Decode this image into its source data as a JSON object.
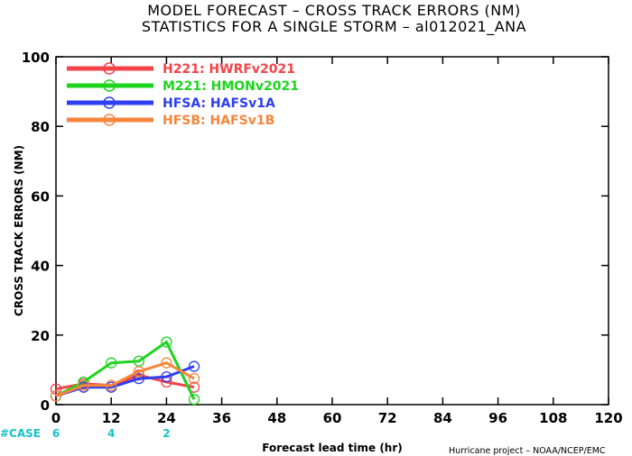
{
  "chart_data": {
    "type": "line",
    "title": "MODEL FORECAST – CROSS TRACK ERRORS (NM)",
    "subtitle": "STATISTICS FOR A SINGLE STORM – al012021_ANA",
    "xlabel": "Forecast lead time (hr)",
    "ylabel": "CROSS TRACK ERRORS (NM)",
    "xlim": [
      0,
      120
    ],
    "ylim": [
      0,
      100
    ],
    "xticks": [
      "0",
      "12",
      "24",
      "36",
      "48",
      "60",
      "72",
      "84",
      "96",
      "108",
      "120"
    ],
    "yticks": [
      "0",
      "20",
      "40",
      "60",
      "80",
      "100"
    ],
    "grid": false,
    "legend_position": "top-left",
    "case_label": "#CASE",
    "cases": [
      {
        "x": 0,
        "label": "6"
      },
      {
        "x": 12,
        "label": "4"
      },
      {
        "x": 24,
        "label": "2"
      }
    ],
    "series": [
      {
        "name": "H221: HWRFv2021",
        "color": "#f5434a",
        "x": [
          0,
          6,
          12,
          18,
          24,
          30
        ],
        "y": [
          4.5,
          6.0,
          5.5,
          8.5,
          6.5,
          5.0
        ]
      },
      {
        "name": "M221: HMONv2021",
        "color": "#1ed41e",
        "x": [
          0,
          6,
          12,
          18,
          24,
          30
        ],
        "y": [
          2.5,
          6.5,
          12.0,
          12.5,
          18.0,
          1.5
        ]
      },
      {
        "name": "HFSA: HAFSv1A",
        "color": "#2e3ef0",
        "x": [
          0,
          6,
          12,
          18,
          24,
          30
        ],
        "y": [
          2.5,
          5.0,
          5.0,
          7.5,
          8.0,
          11.0
        ]
      },
      {
        "name": "HFSB: HAFSv1B",
        "color": "#f5863c",
        "x": [
          0,
          6,
          12,
          18,
          24,
          30
        ],
        "y": [
          2.5,
          5.5,
          5.5,
          9.5,
          12.0,
          7.5
        ]
      }
    ],
    "credit": "Hurricane project – NOAA/NCEP/EMC"
  }
}
